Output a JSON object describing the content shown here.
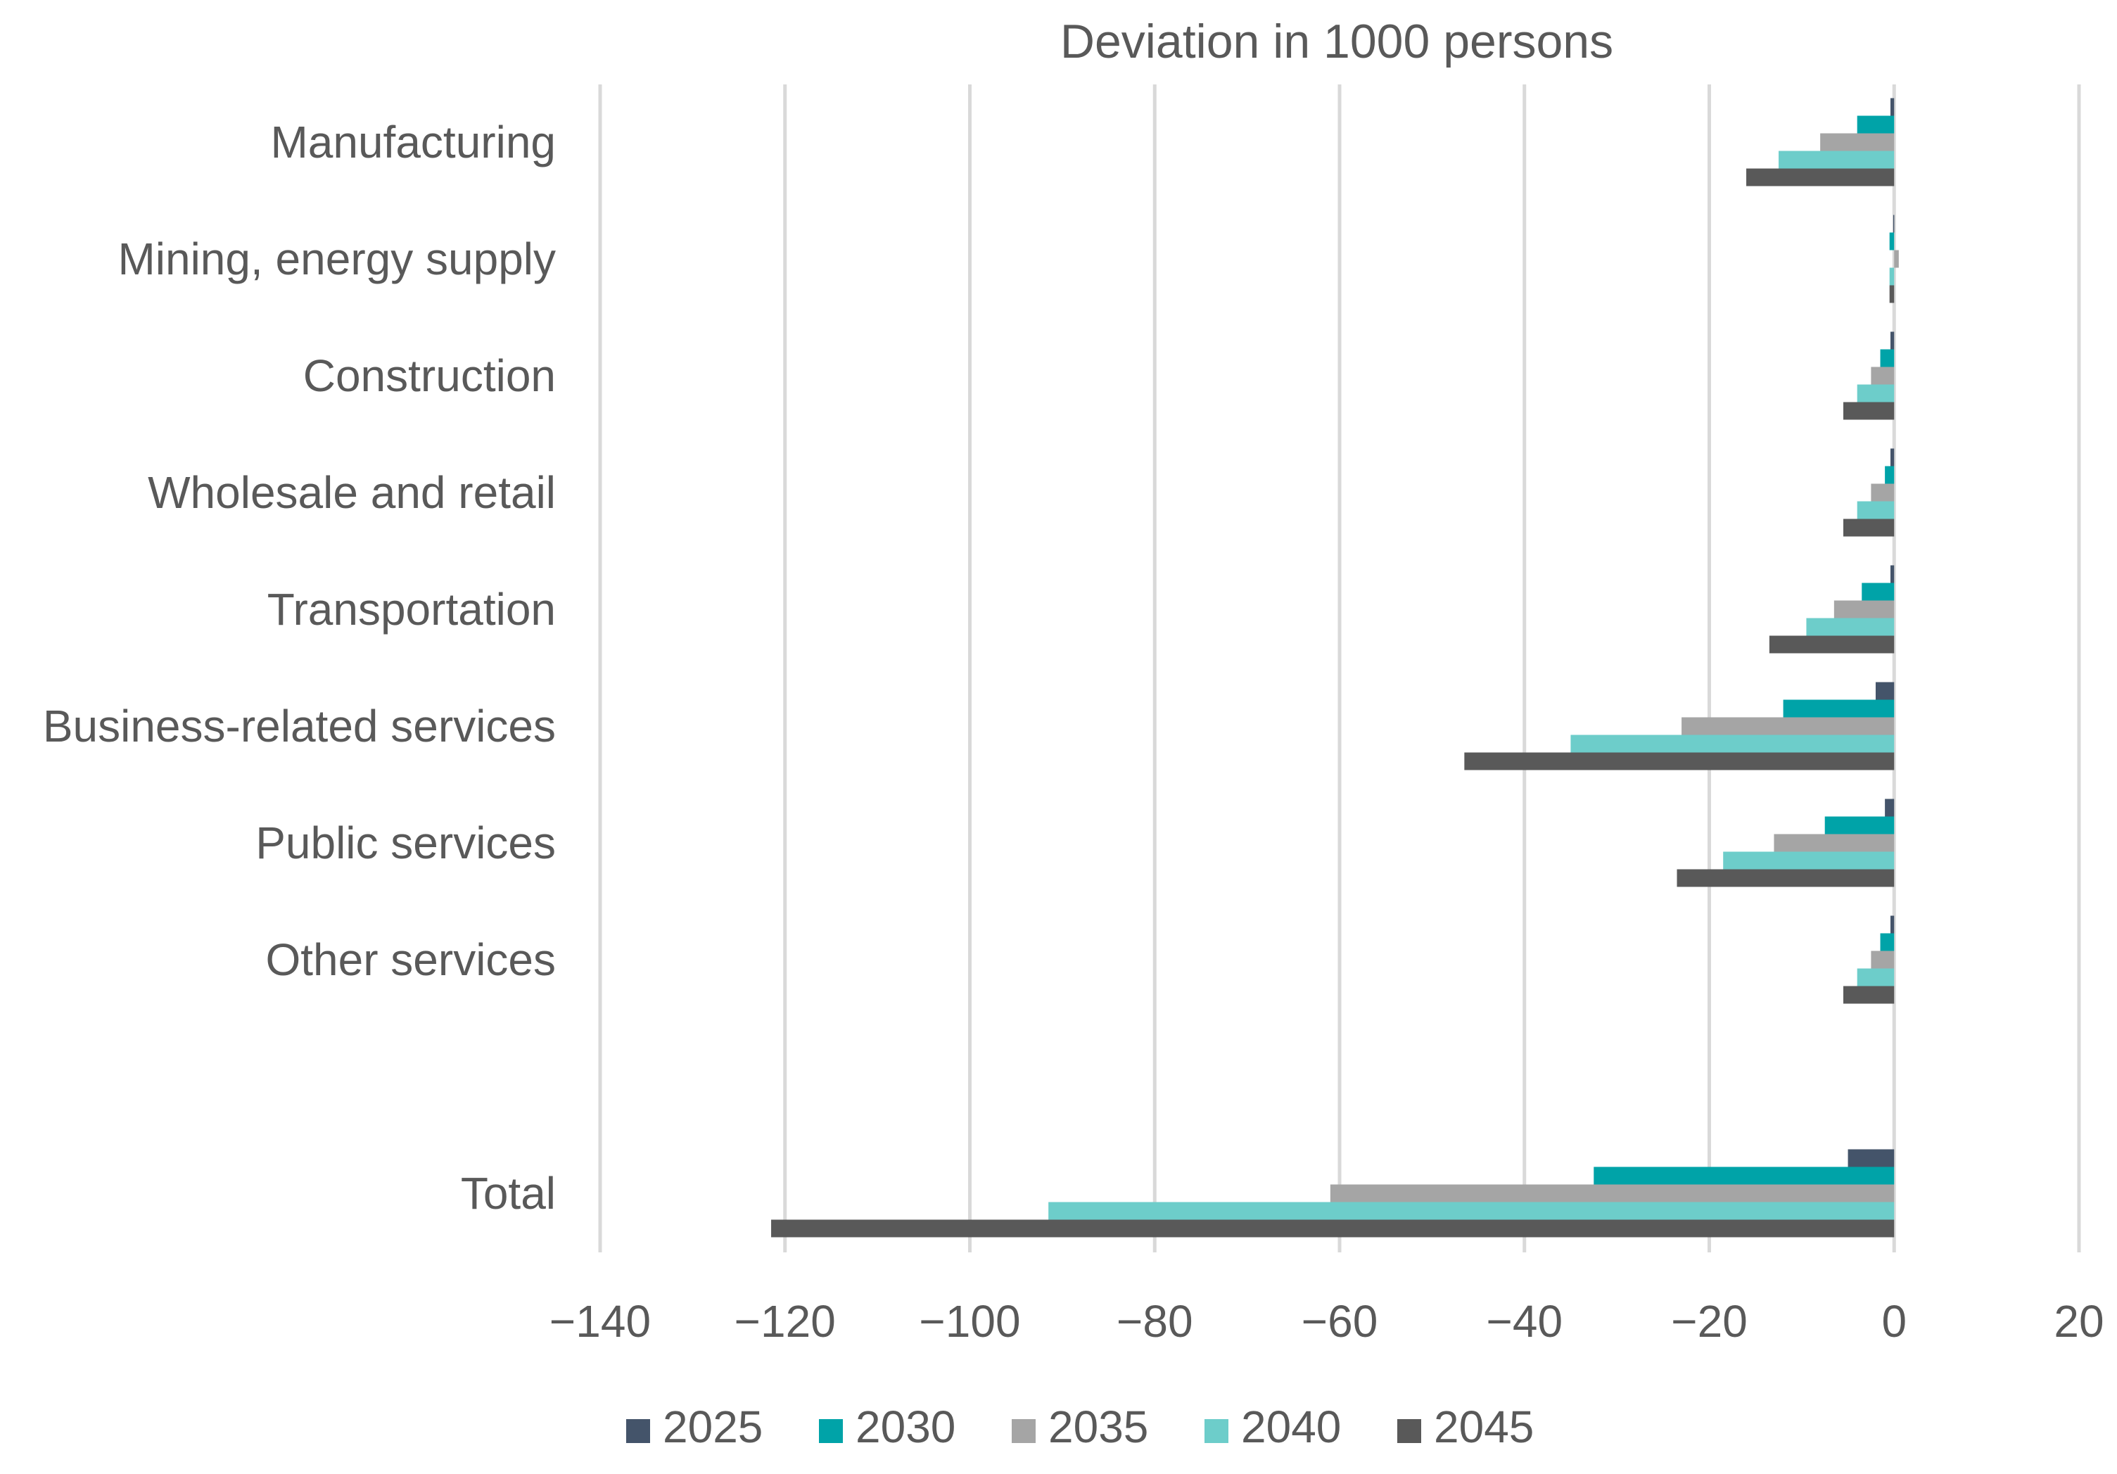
{
  "chart_data": {
    "type": "bar",
    "orientation": "horizontal",
    "title": "Deviation in 1000 persons",
    "xlabel": "",
    "ylabel": "",
    "xlim": [
      -140,
      20
    ],
    "xticks": [
      -140,
      -120,
      -100,
      -80,
      -60,
      -40,
      -20,
      0,
      20
    ],
    "xtick_labels": [
      "−140",
      "−120",
      "−100",
      "−80",
      "−60",
      "−40",
      "−20",
      "0",
      "20"
    ],
    "grid": "vertical",
    "legend_position": "bottom",
    "categories": [
      "Manufacturing",
      "Mining, energy supply",
      "Construction",
      "Wholesale and retail",
      "Transportation",
      "Business-related services",
      "Public services",
      "Other services",
      "",
      "Total"
    ],
    "series": [
      {
        "name": "2025",
        "color": "#44546a",
        "values": [
          -0.4,
          -0.1,
          -0.4,
          -0.4,
          -0.4,
          -2.0,
          -1.0,
          -0.4,
          null,
          -5.0
        ]
      },
      {
        "name": "2030",
        "color": "#00a3a8",
        "values": [
          -4.0,
          -0.5,
          -1.5,
          -1.0,
          -3.5,
          -12.0,
          -7.5,
          -1.5,
          null,
          -32.5
        ]
      },
      {
        "name": "2035",
        "color": "#a5a5a5",
        "values": [
          -8.0,
          0.5,
          -2.5,
          -2.5,
          -6.5,
          -23.0,
          -13.0,
          -2.5,
          null,
          -61.0
        ]
      },
      {
        "name": "2040",
        "color": "#6dcdca",
        "values": [
          -12.5,
          -0.5,
          -4.0,
          -4.0,
          -9.5,
          -35.0,
          -18.5,
          -4.0,
          null,
          -91.5
        ]
      },
      {
        "name": "2045",
        "color": "#595959",
        "values": [
          -16.0,
          -0.5,
          -5.5,
          -5.5,
          -13.5,
          -46.5,
          -23.5,
          -5.5,
          null,
          -121.5
        ]
      }
    ]
  }
}
